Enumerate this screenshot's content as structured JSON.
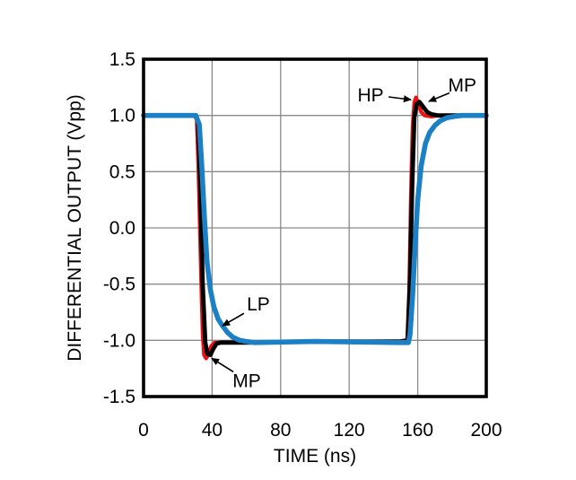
{
  "chart_data": {
    "type": "line",
    "title": "",
    "xlabel": "TIME (ns)",
    "ylabel": "DIFFERENTIAL OUTPUT (Vpp)",
    "xlim": [
      0,
      200
    ],
    "ylim": [
      -1.5,
      1.5
    ],
    "grid": true,
    "grid_color": "#8a8a8a",
    "frame_color": "#000000",
    "background": "#ffffff",
    "xticks": [
      {
        "value": 0,
        "label": "0"
      },
      {
        "value": 40,
        "label": "40"
      },
      {
        "value": 80,
        "label": "80"
      },
      {
        "value": 120,
        "label": "120"
      },
      {
        "value": 160,
        "label": "160"
      },
      {
        "value": 200,
        "label": "200"
      }
    ],
    "yticks": [
      {
        "value": 1.5,
        "label": "1.5"
      },
      {
        "value": 1.0,
        "label": "1.0"
      },
      {
        "value": 0.5,
        "label": "0.5"
      },
      {
        "value": 0.0,
        "label": "0.0"
      },
      {
        "value": -0.5,
        "label": "-0.5"
      },
      {
        "value": -1.0,
        "label": "-1.0"
      },
      {
        "value": -1.5,
        "label": "-1.5"
      }
    ],
    "series": [
      {
        "name": "HP",
        "color": "#ee1111",
        "stroke_width": 4.2,
        "points": [
          [
            0,
            1.0
          ],
          [
            29.5,
            1.0
          ],
          [
            31,
            0.97
          ],
          [
            32,
            0.55
          ],
          [
            33.5,
            -0.4
          ],
          [
            34.5,
            -0.95
          ],
          [
            35.3,
            -1.13
          ],
          [
            36.5,
            -1.16
          ],
          [
            38,
            -1.12
          ],
          [
            39.5,
            -1.05
          ],
          [
            41.5,
            -1.02
          ],
          [
            45,
            -1.02
          ],
          [
            60,
            -1.02
          ],
          [
            100,
            -1.01
          ],
          [
            150,
            -1.01
          ],
          [
            153.8,
            -1.0
          ],
          [
            155,
            -0.55
          ],
          [
            156,
            0.3
          ],
          [
            157,
            0.9
          ],
          [
            158,
            1.12
          ],
          [
            159,
            1.16
          ],
          [
            160.5,
            1.1
          ],
          [
            162,
            1.03
          ],
          [
            164,
            1.0
          ],
          [
            168,
            0.99
          ],
          [
            172,
            1.0
          ],
          [
            200,
            1.0
          ]
        ]
      },
      {
        "name": "MP",
        "color": "#000000",
        "stroke_width": 4.8,
        "points": [
          [
            0,
            1.0
          ],
          [
            30,
            1.0
          ],
          [
            31.8,
            0.95
          ],
          [
            33,
            0.45
          ],
          [
            34.5,
            -0.5
          ],
          [
            36,
            -1.02
          ],
          [
            37.3,
            -1.12
          ],
          [
            39,
            -1.13
          ],
          [
            40.5,
            -1.08
          ],
          [
            42.5,
            -1.03
          ],
          [
            45,
            -1.02
          ],
          [
            60,
            -1.02
          ],
          [
            100,
            -1.01
          ],
          [
            150,
            -1.01
          ],
          [
            154.2,
            -1.0
          ],
          [
            155.5,
            -0.45
          ],
          [
            156.8,
            0.4
          ],
          [
            158,
            0.98
          ],
          [
            159.3,
            1.1
          ],
          [
            161,
            1.12
          ],
          [
            163,
            1.08
          ],
          [
            165.5,
            1.03
          ],
          [
            168,
            1.01
          ],
          [
            172,
            1.0
          ],
          [
            200,
            1.0
          ]
        ]
      },
      {
        "name": "LP",
        "color": "#1b80c4",
        "stroke_width": 5.6,
        "points": [
          [
            0,
            1.0
          ],
          [
            30.5,
            1.0
          ],
          [
            32.5,
            0.92
          ],
          [
            34,
            0.55
          ],
          [
            35.5,
            0.1
          ],
          [
            37,
            -0.3
          ],
          [
            39,
            -0.55
          ],
          [
            41,
            -0.7
          ],
          [
            43.5,
            -0.81
          ],
          [
            46,
            -0.87
          ],
          [
            49,
            -0.93
          ],
          [
            52,
            -0.97
          ],
          [
            56,
            -1.0
          ],
          [
            60,
            -1.01
          ],
          [
            65,
            -1.02
          ],
          [
            100,
            -1.01
          ],
          [
            150,
            -1.02
          ],
          [
            154.5,
            -1.02
          ],
          [
            155.5,
            -0.95
          ],
          [
            157,
            -0.6
          ],
          [
            158.5,
            -0.15
          ],
          [
            160,
            0.25
          ],
          [
            162,
            0.55
          ],
          [
            164.5,
            0.75
          ],
          [
            167,
            0.85
          ],
          [
            170,
            0.91
          ],
          [
            173,
            0.95
          ],
          [
            177,
            0.98
          ],
          [
            181,
            0.99
          ],
          [
            186,
            1.0
          ],
          [
            200,
            1.0
          ]
        ]
      }
    ],
    "annotations": [
      {
        "label": "HP",
        "label_ns": 132.5,
        "label_v": 1.18,
        "arrow_from_ns": 143.0,
        "arrow_from_v": 1.165,
        "arrow_to_ns": 156.0,
        "arrow_to_v": 1.14
      },
      {
        "label": "MP",
        "label_ns": 186.0,
        "label_v": 1.27,
        "arrow_from_ns": 178.5,
        "arrow_from_v": 1.2,
        "arrow_to_ns": 166.5,
        "arrow_to_v": 1.125
      },
      {
        "label": "LP",
        "label_ns": 67.0,
        "label_v": -0.68,
        "arrow_from_ns": 58.6,
        "arrow_from_v": -0.76,
        "arrow_to_ns": 46.1,
        "arrow_to_v": -0.87
      },
      {
        "label": "MP",
        "label_ns": 60.2,
        "label_v": -1.36,
        "arrow_from_ns": 52.4,
        "arrow_from_v": -1.28,
        "arrow_to_ns": 39.8,
        "arrow_to_v": -1.16
      }
    ]
  }
}
